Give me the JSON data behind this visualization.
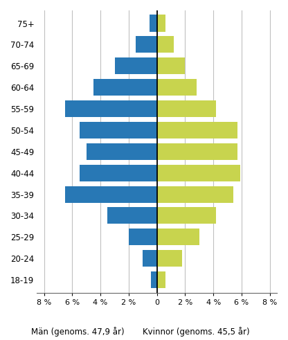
{
  "age_groups": [
    "75+",
    "70-74",
    "65-69",
    "60-64",
    "55-59",
    "50-54",
    "45-49",
    "40-44",
    "35-39",
    "30-34",
    "25-29",
    "20-24",
    "18-19"
  ],
  "men_values": [
    0.5,
    1.5,
    3.0,
    4.5,
    6.5,
    5.5,
    5.0,
    5.5,
    6.5,
    3.5,
    2.0,
    1.0,
    0.4
  ],
  "women_values": [
    0.6,
    1.2,
    2.0,
    2.8,
    4.2,
    5.7,
    5.7,
    5.9,
    5.4,
    4.2,
    3.0,
    1.8,
    0.6
  ],
  "men_color": "#2878b5",
  "women_color": "#c8d44e",
  "xlim": 8.5,
  "xlabel_men": "Män (genoms. 47,9 år)",
  "xlabel_women": "Kvinnor (genoms. 45,5 år)",
  "background_color": "#ffffff",
  "grid_color": "#c0c0c0",
  "bar_height": 0.78
}
